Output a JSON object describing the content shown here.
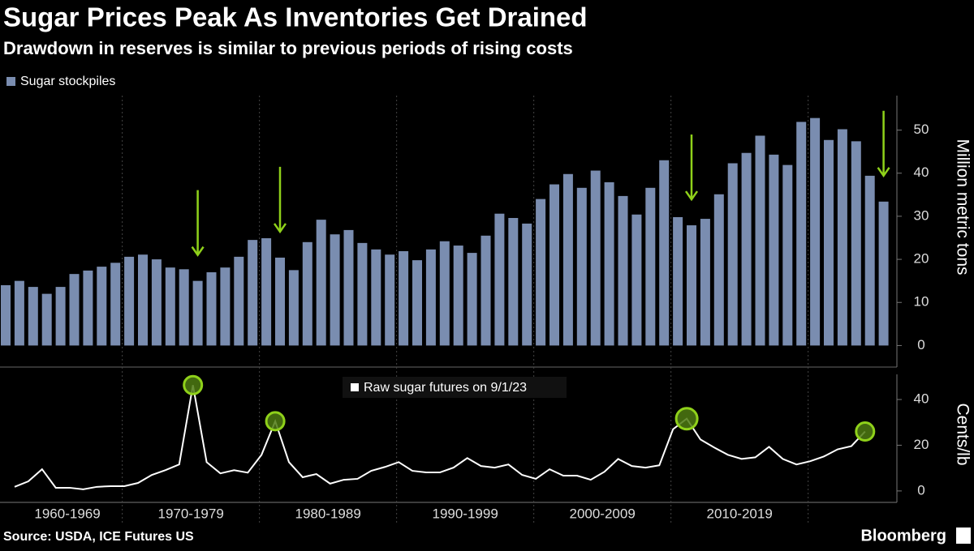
{
  "title": "Sugar Prices Peak As Inventories Get Drained",
  "subtitle": "Drawdown in reserves is similar to previous periods of rising costs",
  "source": "Source: USDA, ICE Futures US",
  "logo": "Bloomberg",
  "chart_data": [
    {
      "type": "bar",
      "categories": [
        null,
        null,
        null,
        null,
        "1960-1969",
        null,
        null,
        null,
        null,
        null,
        null,
        null,
        null,
        "1970-1979",
        null,
        null,
        null,
        null,
        null,
        null,
        null,
        null,
        null,
        "1980-1989",
        null,
        null,
        null,
        null,
        null,
        null,
        null,
        null,
        null,
        "1990-1999",
        null,
        null,
        null,
        null,
        null,
        null,
        null,
        null,
        null,
        "2000-2009",
        null,
        null,
        null,
        null,
        null,
        null,
        null,
        null,
        null,
        "2010-2019",
        null,
        null,
        null,
        null,
        null,
        null,
        null,
        null,
        null,
        null,
        null
      ],
      "series": [
        {
          "name": "Sugar stockpiles",
          "color": "#7a8db0",
          "values": [
            14,
            15,
            13.6,
            12,
            13.6,
            16.6,
            17.4,
            18.3,
            19.2,
            20.6,
            21.1,
            20,
            18.1,
            17.7,
            15,
            17,
            18.1,
            20.6,
            24.5,
            24.9,
            20.4,
            17.5,
            24,
            29.2,
            25.8,
            26.8,
            23.8,
            22.3,
            21.1,
            21.9,
            19.8,
            22.3,
            24.2,
            23.2,
            21.5,
            25.5,
            30.6,
            29.6,
            28.3,
            34,
            37.4,
            39.8,
            36.6,
            40.6,
            37.9,
            34.7,
            30.4,
            36.6,
            43,
            29.8,
            27.9,
            29.4,
            35.1,
            42.3,
            44.7,
            48.7,
            44.3,
            41.9,
            51.9,
            52.8,
            47.7,
            50.2,
            47.4,
            39.4,
            33.4
          ]
        }
      ],
      "y_label": "Million metric tons",
      "ylim": [
        -5,
        58
      ],
      "yticks": [
        0,
        10,
        20,
        30,
        40,
        50
      ]
    },
    {
      "type": "line",
      "series": [
        {
          "name": "Raw sugar futures on 9/1/23",
          "color": "#ffffff",
          "values": [
            1.8,
            4.2,
            9.5,
            1.4,
            1.4,
            0.7,
            1.8,
            2.1,
            2.1,
            3.5,
            7,
            9.1,
            11.6,
            46.3,
            12.6,
            7.7,
            9.1,
            8,
            15.8,
            30.5,
            12.6,
            6,
            7.4,
            3.2,
            4.9,
            5.3,
            8.8,
            10.5,
            12.6,
            8.8,
            8.1,
            8.1,
            10.2,
            14.4,
            10.9,
            10.2,
            11.6,
            7,
            5.3,
            9.5,
            6.7,
            6.7,
            4.9,
            8.4,
            14,
            10.9,
            10.2,
            11.2,
            27,
            31.6,
            22.5,
            19,
            15.8,
            14,
            14.7,
            19.3,
            14,
            11.6,
            13,
            15.1,
            18.2,
            19.6,
            26,
            null,
            null
          ]
        }
      ],
      "y_label": "Cents/lb",
      "ylim": [
        -5,
        51
      ],
      "yticks": [
        0,
        20,
        40
      ]
    }
  ]
}
